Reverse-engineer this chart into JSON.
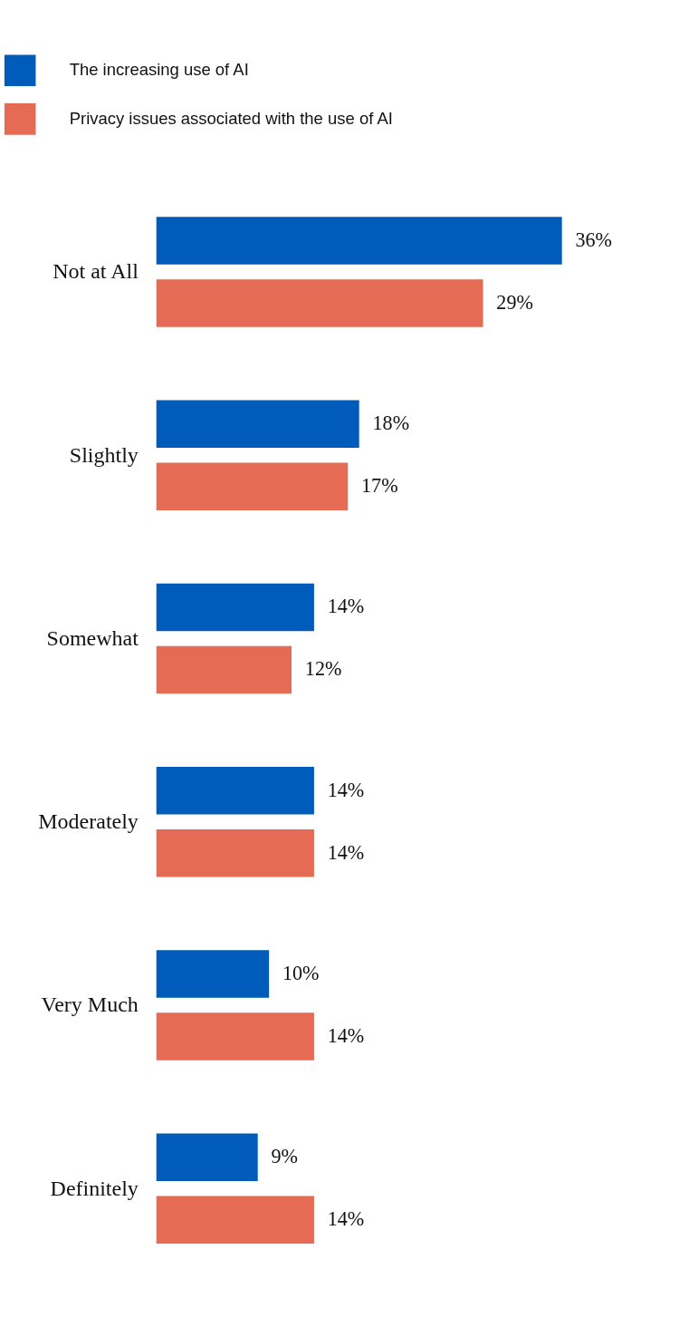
{
  "chart_data": {
    "type": "bar",
    "orientation": "horizontal",
    "legend": "top left",
    "categories": [
      "Not at All",
      "Slightly",
      "Somewhat",
      "Moderately",
      "Very Much",
      "Definitely"
    ],
    "series": [
      {
        "name": "The increasing use of AI",
        "color": "#005bbb",
        "values": [
          36,
          18,
          14,
          14,
          10,
          9
        ],
        "value_labels": [
          "36%",
          "18%",
          "14%",
          "14%",
          "10%",
          "9%"
        ]
      },
      {
        "name": "Privacy issues associated with the use of AI",
        "color": "#e56b55",
        "values": [
          29,
          17,
          12,
          14,
          14,
          14
        ],
        "value_labels": [
          "29%",
          "17%",
          "12%",
          "14%",
          "14%",
          "14%"
        ]
      }
    ]
  }
}
